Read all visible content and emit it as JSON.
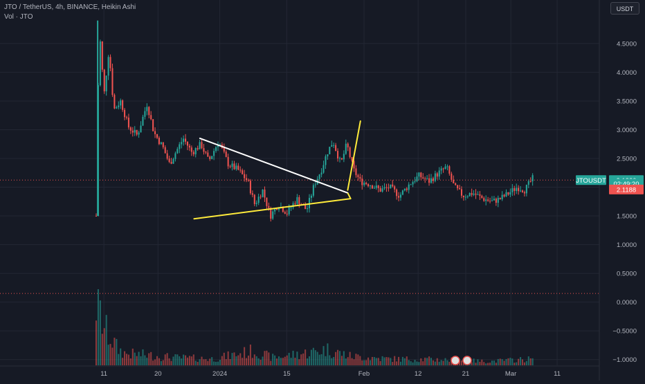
{
  "header": {
    "symbol_line": "JTO / TetherUS, 4h, BINANCE, Heikin Ashi",
    "volume_line": "Vol · JTO"
  },
  "currency_button": "USDT",
  "colors": {
    "background": "#161a25",
    "grid": "#232734",
    "up": "#26a69a",
    "down": "#ef5350",
    "trendline_upper": "#ffffff",
    "trendline_lower": "#ffeb3b",
    "projection": "#ffeb3b",
    "axis_text": "#b2b5be",
    "price_dot_line": "#ef5350",
    "badge": "#26a69a",
    "badge_red": "#ef5350"
  },
  "chart_data": {
    "type": "candlestick",
    "x_axis": {
      "labels": [
        "11",
        "20",
        "2024",
        "15",
        "Feb",
        "12",
        "21",
        "Mar",
        "11"
      ]
    },
    "y_axis": {
      "ticks": [
        -1.0,
        -0.5,
        0.0,
        0.5,
        1.0,
        1.5,
        2.0,
        2.5,
        3.0,
        3.5,
        4.0,
        4.5
      ],
      "tick_labels": [
        "−1.0000",
        "−0.5000",
        "0.0000",
        "0.5000",
        "1.0000",
        "1.5000",
        "2.0000",
        "2.5000",
        "3.0000",
        "3.5000",
        "4.0000",
        "4.5000"
      ],
      "range": [
        -1.1,
        4.92
      ]
    },
    "price_path": [
      [
        0,
        1.5
      ],
      [
        0.3,
        4.8
      ],
      [
        0.8,
        3.6
      ],
      [
        1.3,
        4.4
      ],
      [
        1.8,
        3.35
      ],
      [
        2.5,
        3.5
      ],
      [
        3.3,
        3.05
      ],
      [
        4.2,
        2.9
      ],
      [
        5.2,
        3.45
      ],
      [
        5.9,
        2.95
      ],
      [
        6.8,
        2.7
      ],
      [
        7.5,
        2.4
      ],
      [
        8.1,
        2.6
      ],
      [
        8.9,
        2.85
      ],
      [
        9.8,
        2.6
      ],
      [
        10.7,
        2.75
      ],
      [
        11.5,
        2.45
      ],
      [
        12.5,
        2.8
      ],
      [
        13.5,
        2.4
      ],
      [
        14.5,
        2.3
      ],
      [
        15.5,
        2.1
      ],
      [
        16.2,
        1.7
      ],
      [
        17.0,
        1.95
      ],
      [
        17.8,
        1.5
      ],
      [
        18.6,
        1.7
      ],
      [
        19.5,
        1.55
      ],
      [
        20.5,
        1.8
      ],
      [
        21.5,
        1.6
      ],
      [
        22.3,
        2.05
      ],
      [
        23.0,
        2.3
      ],
      [
        23.6,
        2.6
      ],
      [
        24.2,
        2.8
      ],
      [
        25.0,
        2.4
      ],
      [
        25.6,
        2.75
      ],
      [
        26.3,
        2.3
      ],
      [
        27.0,
        2.1
      ],
      [
        28.0,
        2.05
      ],
      [
        29.0,
        1.95
      ],
      [
        30.0,
        2.0
      ],
      [
        31.0,
        1.85
      ],
      [
        32.0,
        2.05
      ],
      [
        33.0,
        2.2
      ],
      [
        34.0,
        2.1
      ],
      [
        35.0,
        2.25
      ],
      [
        35.8,
        2.35
      ],
      [
        36.6,
        2.0
      ],
      [
        37.5,
        1.85
      ],
      [
        38.5,
        1.9
      ],
      [
        39.5,
        1.8
      ],
      [
        40.5,
        1.75
      ],
      [
        41.3,
        1.8
      ],
      [
        42.2,
        1.9
      ],
      [
        43.0,
        2.0
      ],
      [
        43.8,
        1.95
      ],
      [
        44.6,
        2.15
      ]
    ],
    "volume_path": [
      [
        0,
        0.95
      ],
      [
        0.4,
        0.78
      ],
      [
        0.9,
        0.55
      ],
      [
        1.5,
        0.42
      ],
      [
        2.2,
        0.25
      ],
      [
        3.0,
        0.18
      ],
      [
        5.0,
        0.16
      ],
      [
        8.0,
        0.12
      ],
      [
        12.0,
        0.1
      ],
      [
        16.0,
        0.22
      ],
      [
        18.0,
        0.12
      ],
      [
        22.0,
        0.2
      ],
      [
        23.5,
        0.25
      ],
      [
        26.0,
        0.14
      ],
      [
        30.0,
        0.1
      ],
      [
        35.0,
        0.09
      ],
      [
        40.0,
        0.06
      ],
      [
        44.6,
        0.1
      ]
    ],
    "trendline_upper": {
      "from": [
        10.6,
        2.85
      ],
      "to": [
        25.7,
        1.9
      ]
    },
    "trendline_lower": {
      "from": [
        10.0,
        1.45
      ],
      "to": [
        26.0,
        1.8
      ]
    },
    "projection_line": {
      "from": [
        25.7,
        1.95
      ],
      "to": [
        27.0,
        3.15
      ]
    },
    "current_price": 2.123,
    "markers": [
      {
        "label": "JTOUSDT",
        "price": 2.123
      },
      {
        "label": "2.1230",
        "price": 2.123
      },
      {
        "label": "02:49:20",
        "price": 2.06
      },
      {
        "label": "2.1188",
        "price": 1.96
      }
    ]
  }
}
